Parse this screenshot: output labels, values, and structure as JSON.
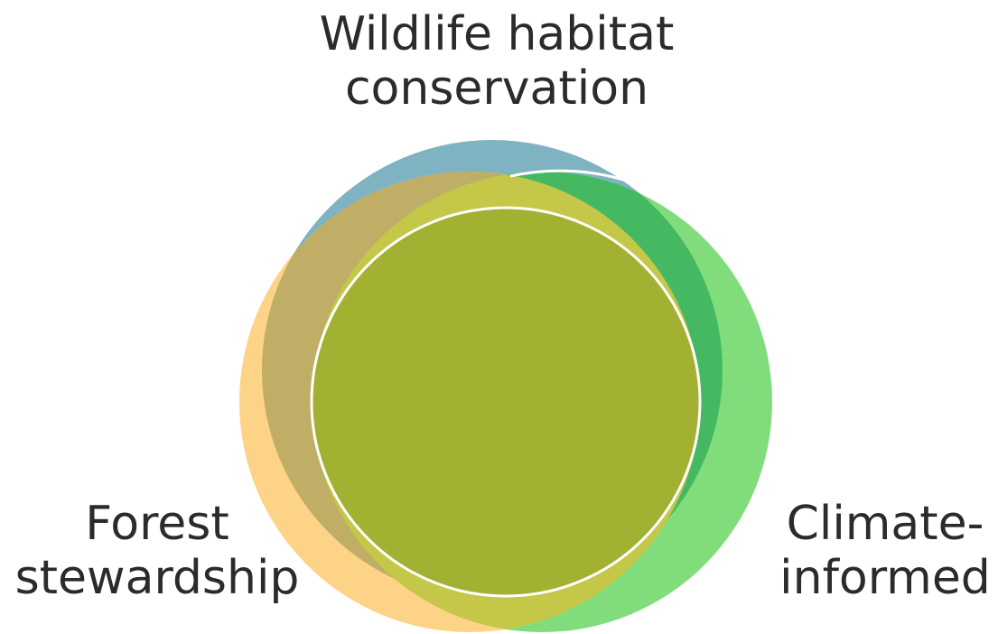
{
  "diagram": {
    "type": "venn",
    "circles": [
      {
        "id": "wildlife",
        "label_lines": [
          "Wildlife habitat",
          "conservation"
        ],
        "fill": "#7fb3c1"
      },
      {
        "id": "climate",
        "label_lines": [
          "Climate-",
          "informed"
        ],
        "fill": "#81dd7b"
      },
      {
        "id": "forest",
        "label_lines": [
          "Forest",
          "stewardship"
        ],
        "fill": "#fdd387"
      }
    ],
    "overlap_colors": {
      "wildlife_forest": "#c0ae66",
      "wildlife_climate": "#45b961",
      "forest_climate": "#c4c747",
      "all_three": "#a2b132"
    },
    "outline_color": "#ffffff"
  }
}
